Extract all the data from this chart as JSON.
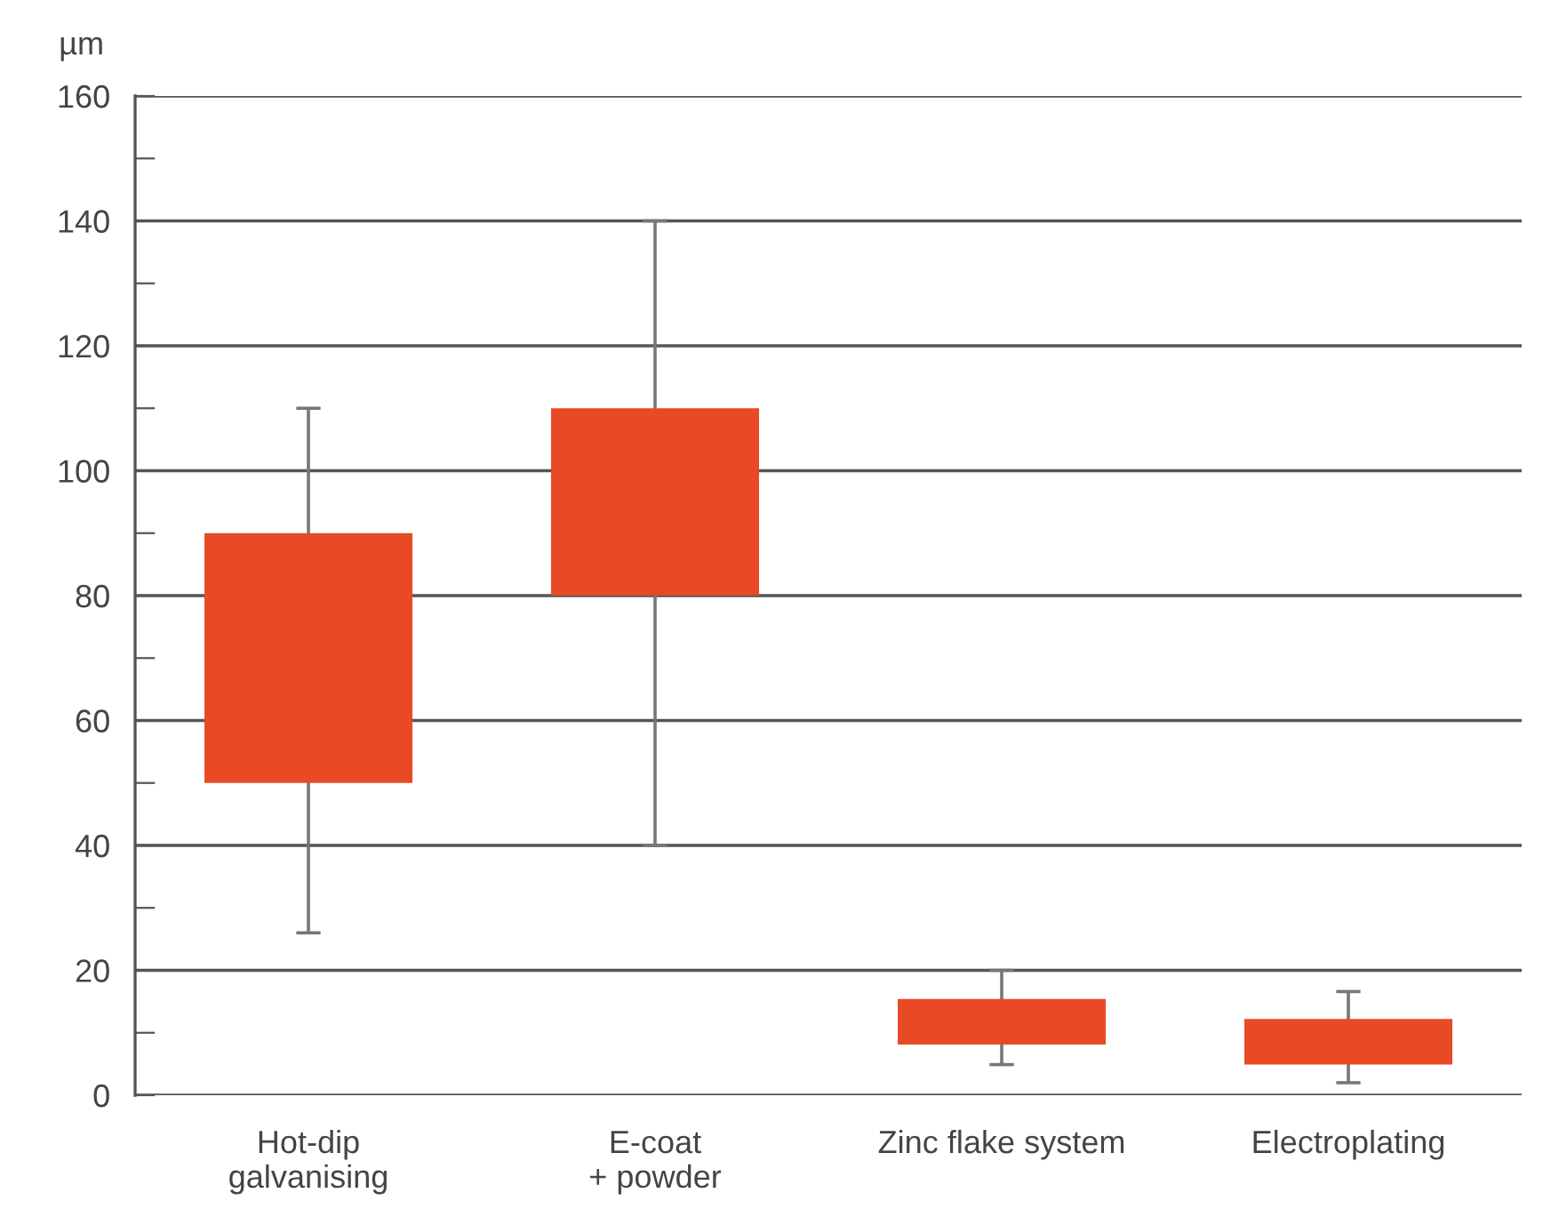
{
  "chart_data": {
    "type": "bar",
    "ylabel": "µm",
    "categories": [
      "Hot-dip\ngalvanising",
      "E-coat\n+ powder",
      "Zinc flake system",
      "Electroplating"
    ],
    "base": [
      50,
      80,
      8.1,
      4.9
    ],
    "values": [
      40,
      30,
      7.3,
      7.3
    ],
    "errors": [
      [
        26,
        110
      ],
      [
        40,
        140
      ],
      [
        4.9,
        20
      ],
      [
        2,
        16.6
      ]
    ],
    "color": "#e84a25",
    "ylim": [
      0,
      160
    ],
    "yticks": [
      0,
      {
        "value": 10,
        "label": null
      },
      20,
      {
        "value": 30,
        "label": null
      },
      40,
      {
        "value": 50,
        "label": null
      },
      60,
      {
        "value": 70,
        "label": null
      },
      80,
      {
        "value": 90,
        "label": null
      },
      100,
      {
        "value": 110,
        "label": null
      },
      120,
      {
        "value": 130,
        "label": null
      },
      140,
      {
        "value": 150,
        "label": null
      },
      160
    ],
    "grid": "y"
  }
}
